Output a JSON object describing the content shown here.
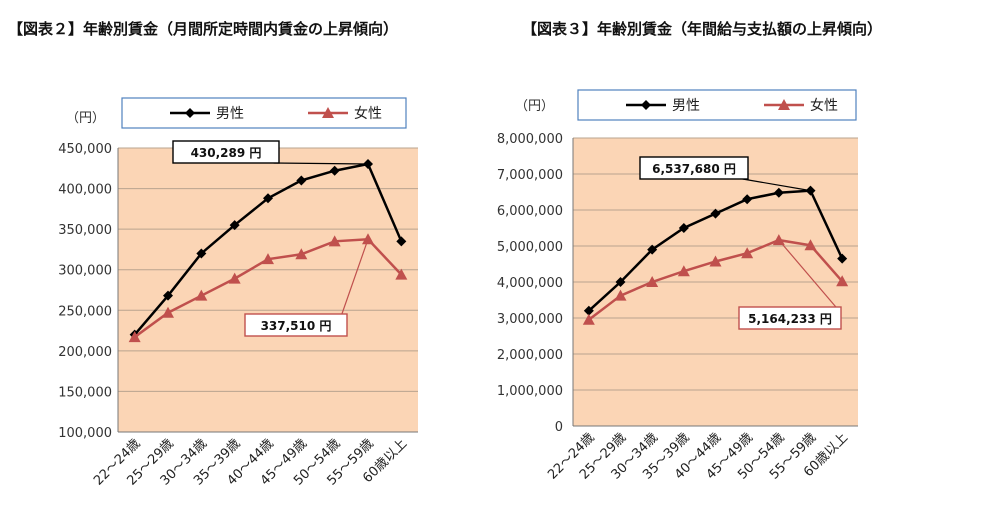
{
  "chart_data": [
    {
      "type": "line",
      "title": "【図表２】年齢別賃金（月間所定時間内賃金の上昇傾向）",
      "unit_label": "（円）",
      "categories": [
        "22～24歳",
        "25～29歳",
        "30～34歳",
        "35～39歳",
        "40～44歳",
        "45～49歳",
        "50～54歳",
        "55～59歳",
        "60歳以上"
      ],
      "ylim": [
        100000,
        450000
      ],
      "ytick_labels": [
        "100,000",
        "150,000",
        "200,000",
        "250,000",
        "300,000",
        "350,000",
        "400,000",
        "450,000"
      ],
      "series": [
        {
          "name": "男性",
          "color": "#000000",
          "marker": "diamond",
          "values": [
            220000,
            268000,
            320000,
            355000,
            388000,
            410000,
            422000,
            430289,
            335000
          ]
        },
        {
          "name": "女性",
          "color": "#c0504d",
          "marker": "triangle",
          "values": [
            217000,
            247000,
            268000,
            289000,
            313000,
            319000,
            335000,
            337510,
            294000
          ]
        }
      ],
      "callouts": [
        {
          "text": "430,289 円",
          "series": 0,
          "index": 7,
          "border": "#000000"
        },
        {
          "text": "337,510 円",
          "series": 1,
          "index": 7,
          "border": "#c0504d"
        }
      ],
      "grid": true,
      "plot_background": "#fbd5b5",
      "legend_position": "top"
    },
    {
      "type": "line",
      "title": "【図表３】年齢別賃金（年間給与支払額の上昇傾向）",
      "unit_label": "（円）",
      "categories": [
        "22～24歳",
        "25～29歳",
        "30～34歳",
        "35～39歳",
        "40～44歳",
        "45～49歳",
        "50～54歳",
        "55～59歳",
        "60歳以上"
      ],
      "ylim": [
        0,
        8000000
      ],
      "ytick_labels": [
        "0",
        "1,000,000",
        "2,000,000",
        "3,000,000",
        "4,000,000",
        "5,000,000",
        "6,000,000",
        "7,000,000",
        "8,000,000"
      ],
      "series": [
        {
          "name": "男性",
          "color": "#000000",
          "marker": "diamond",
          "values": [
            3200000,
            4000000,
            4900000,
            5500000,
            5900000,
            6300000,
            6480000,
            6537680,
            4650000
          ]
        },
        {
          "name": "女性",
          "color": "#c0504d",
          "marker": "triangle",
          "values": [
            2950000,
            3620000,
            4000000,
            4300000,
            4570000,
            4800000,
            5164233,
            5020000,
            4020000
          ]
        }
      ],
      "callouts": [
        {
          "text": "6,537,680 円",
          "series": 0,
          "index": 7,
          "border": "#000000"
        },
        {
          "text": "5,164,233 円",
          "series": 1,
          "index": 6,
          "border": "#c0504d"
        }
      ],
      "grid": true,
      "plot_background": "#fbd5b5",
      "legend_position": "top"
    }
  ]
}
